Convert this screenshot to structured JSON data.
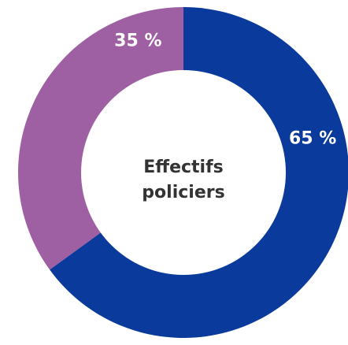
{
  "chart_data": {
    "type": "pie",
    "variant": "donut",
    "title_lines": [
      "Effectifs",
      "policiers"
    ],
    "slices": [
      {
        "value": 65,
        "label": "65 %",
        "color": "#0a3a9c"
      },
      {
        "value": 35,
        "label": "35 %",
        "color": "#9e5fa3"
      }
    ],
    "start": "top",
    "direction": "clockwise",
    "legend": "none"
  }
}
